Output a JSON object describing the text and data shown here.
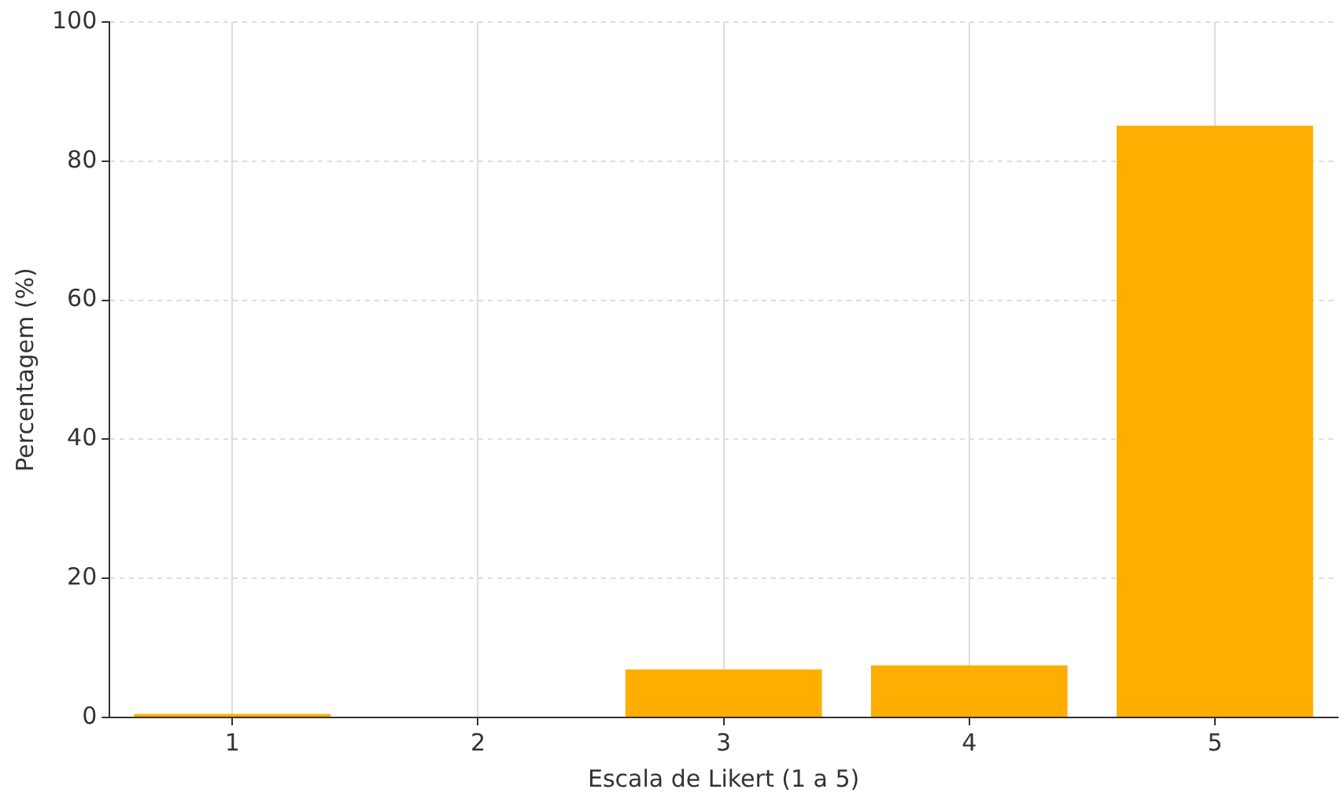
{
  "chart_data": {
    "type": "bar",
    "xlabel": "Escala de Likert (1 a 5)",
    "ylabel": "Percentagem (%)",
    "categories": [
      "1",
      "2",
      "3",
      "4",
      "5"
    ],
    "values": [
      0.5,
      0,
      6.9,
      7.5,
      85.1
    ],
    "color": "#ffad00",
    "ylim": [
      0,
      100
    ],
    "yticks": [
      0,
      20,
      40,
      60,
      80,
      100
    ],
    "grid": true
  }
}
